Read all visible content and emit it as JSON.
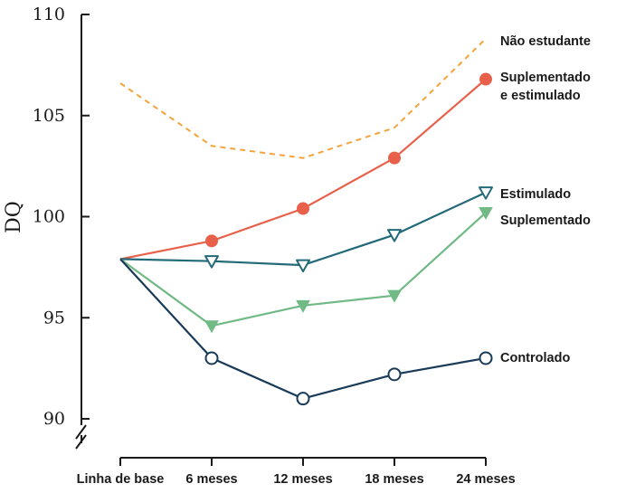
{
  "chart_data": {
    "type": "line",
    "ylabel": "DQ",
    "xlabel": "",
    "title": "",
    "ylim": [
      90,
      110
    ],
    "yticks": [
      90,
      95,
      100,
      105,
      110
    ],
    "categories": [
      "Linha de base",
      "6 meses",
      "12 meses",
      "18 meses",
      "24 meses"
    ],
    "axis_break": true,
    "grid": false,
    "series": [
      {
        "name": "Não estudante",
        "name_lines": [
          "Não estudante"
        ],
        "values": [
          106.6,
          103.5,
          102.9,
          104.4,
          108.8
        ],
        "color": "#f5a33b",
        "dashed": true,
        "marker": "none",
        "start_index": 0
      },
      {
        "name": "Suplementado e estimulado",
        "name_lines": [
          "Suplementado",
          "e estimulado"
        ],
        "values": [
          97.9,
          98.8,
          100.4,
          102.9,
          106.8
        ],
        "color": "#e8604a",
        "dashed": false,
        "marker": "filled-circle",
        "start_index": 0
      },
      {
        "name": "Estimulado",
        "name_lines": [
          "Estimulado"
        ],
        "values": [
          97.9,
          97.8,
          97.6,
          99.1,
          101.2
        ],
        "color": "#236a79",
        "dashed": false,
        "marker": "open-triangle-down",
        "start_index": 0
      },
      {
        "name": "Suplementado",
        "name_lines": [
          "Suplementado"
        ],
        "values": [
          97.9,
          94.6,
          95.6,
          96.1,
          100.2
        ],
        "color": "#71ba86",
        "dashed": false,
        "marker": "filled-triangle-down",
        "start_index": 0
      },
      {
        "name": "Controlado",
        "name_lines": [
          "Controlado"
        ],
        "values": [
          97.9,
          93.0,
          91.0,
          92.2,
          93.0
        ],
        "color": "#193b59",
        "dashed": false,
        "marker": "open-circle",
        "start_index": 0
      }
    ]
  }
}
